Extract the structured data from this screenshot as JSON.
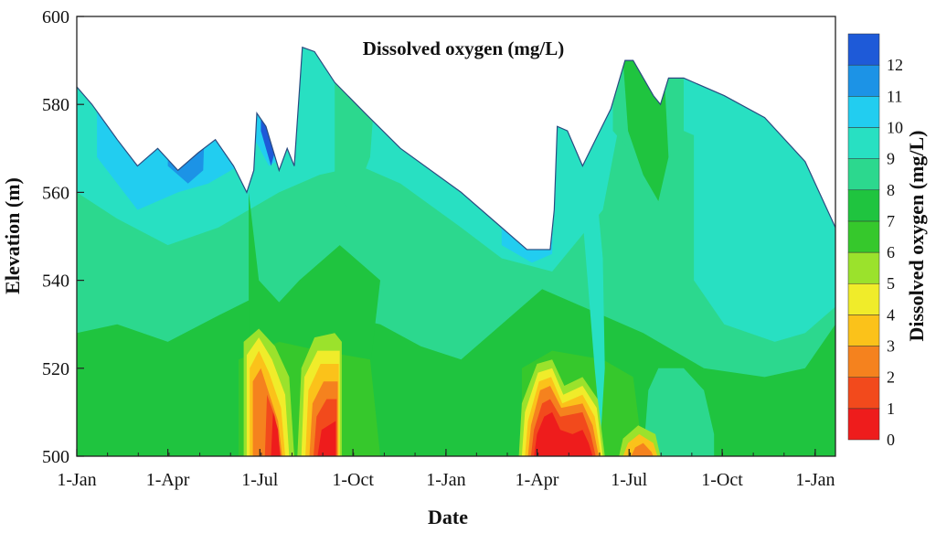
{
  "chart_data": {
    "type": "heatmap",
    "title": "Dissolved oxygen (mg/L)",
    "xlabel": "Date",
    "ylabel": "Elevation (m)",
    "colorbar_label": "Dissolved oxygen (mg/L)",
    "ylim": [
      500,
      600
    ],
    "y_ticks": [
      500,
      520,
      540,
      560,
      580,
      600
    ],
    "x_range_days": [
      0,
      750
    ],
    "x_ticks": [
      {
        "label": "1-Jan",
        "day": 0
      },
      {
        "label": "1-Apr",
        "day": 90
      },
      {
        "label": "1-Jul",
        "day": 181
      },
      {
        "label": "1-Oct",
        "day": 273
      },
      {
        "label": "1-Jan",
        "day": 365
      },
      {
        "label": "1-Apr",
        "day": 455
      },
      {
        "label": "1-Jul",
        "day": 546
      },
      {
        "label": "1-Oct",
        "day": 638
      },
      {
        "label": "1-Jan",
        "day": 730
      }
    ],
    "color_levels": [
      0,
      1,
      2,
      3,
      4,
      5,
      6,
      7,
      8,
      9,
      10,
      11,
      12
    ],
    "colorbar_ticks": [
      "0",
      "1",
      "2",
      "3",
      "4",
      "5",
      "6",
      "7",
      "8",
      "9",
      "10",
      "11",
      "12"
    ],
    "colors": {
      "0": "#ee1c1c",
      "1": "#f24a1c",
      "2": "#f5821e",
      "3": "#fbc21a",
      "4": "#f0ec2a",
      "5": "#9be22c",
      "6": "#36c82c",
      "7": "#1fc43f",
      "8": "#2cd88e",
      "9": "#28e0c2",
      "10": "#22cdf0",
      "11": "#1c93e6",
      "12": "#1e5ad8",
      "13": "#1c28d2"
    },
    "water_surface": [
      {
        "day": 0,
        "elev": 584
      },
      {
        "day": 15,
        "elev": 580
      },
      {
        "day": 40,
        "elev": 572
      },
      {
        "day": 60,
        "elev": 566
      },
      {
        "day": 80,
        "elev": 570
      },
      {
        "day": 100,
        "elev": 565
      },
      {
        "day": 120,
        "elev": 569
      },
      {
        "day": 137,
        "elev": 572
      },
      {
        "day": 155,
        "elev": 566
      },
      {
        "day": 168,
        "elev": 560
      },
      {
        "day": 175,
        "elev": 565
      },
      {
        "day": 178,
        "elev": 578
      },
      {
        "day": 187,
        "elev": 575
      },
      {
        "day": 200,
        "elev": 565
      },
      {
        "day": 208,
        "elev": 570
      },
      {
        "day": 215,
        "elev": 566
      },
      {
        "day": 223,
        "elev": 593
      },
      {
        "day": 235,
        "elev": 592
      },
      {
        "day": 255,
        "elev": 585
      },
      {
        "day": 285,
        "elev": 578
      },
      {
        "day": 320,
        "elev": 570
      },
      {
        "day": 380,
        "elev": 560
      },
      {
        "day": 420,
        "elev": 552
      },
      {
        "day": 445,
        "elev": 547
      },
      {
        "day": 468,
        "elev": 547
      },
      {
        "day": 472,
        "elev": 556
      },
      {
        "day": 475,
        "elev": 575
      },
      {
        "day": 485,
        "elev": 574
      },
      {
        "day": 500,
        "elev": 566
      },
      {
        "day": 515,
        "elev": 573
      },
      {
        "day": 528,
        "elev": 579
      },
      {
        "day": 542,
        "elev": 590
      },
      {
        "day": 550,
        "elev": 590
      },
      {
        "day": 570,
        "elev": 582
      },
      {
        "day": 577,
        "elev": 580
      },
      {
        "day": 585,
        "elev": 586
      },
      {
        "day": 600,
        "elev": 586
      },
      {
        "day": 640,
        "elev": 582
      },
      {
        "day": 680,
        "elev": 577
      },
      {
        "day": 720,
        "elev": 567
      },
      {
        "day": 750,
        "elev": 552
      }
    ]
  }
}
